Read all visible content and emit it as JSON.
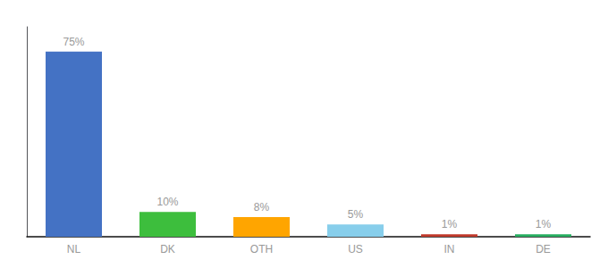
{
  "chart_data": {
    "type": "bar",
    "categories": [
      "NL",
      "DK",
      "OTH",
      "US",
      "IN",
      "DE"
    ],
    "values": [
      75,
      10,
      8,
      5,
      1,
      1
    ],
    "value_labels": [
      "75%",
      "10%",
      "8%",
      "5%",
      "1%",
      "1%"
    ],
    "colors": [
      "#4472C4",
      "#3DBE3D",
      "#FFA500",
      "#87CEEB",
      "#C0392B",
      "#27AE60"
    ],
    "ylim": [
      0,
      85
    ],
    "data_labels": true,
    "tick_labels": "x",
    "grid": false
  }
}
